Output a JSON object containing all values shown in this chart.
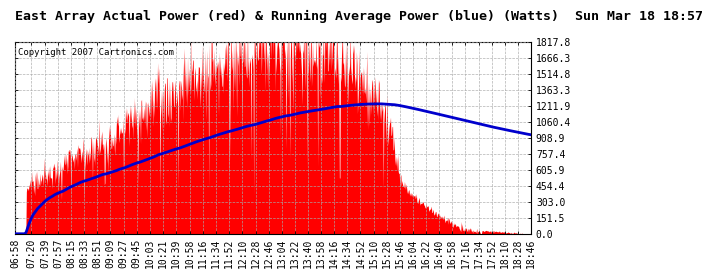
{
  "title": "East Array Actual Power (red) & Running Average Power (blue) (Watts)  Sun Mar 18 18:57",
  "copyright": "Copyright 2007 Cartronics.com",
  "ymax": 1817.8,
  "ytick_values": [
    0.0,
    151.5,
    303.0,
    454.4,
    605.9,
    757.4,
    908.9,
    1060.4,
    1211.9,
    1363.3,
    1514.8,
    1666.3,
    1817.8
  ],
  "xtick_labels": [
    "06:58",
    "07:20",
    "07:39",
    "07:57",
    "08:15",
    "08:33",
    "08:51",
    "09:09",
    "09:27",
    "09:45",
    "10:03",
    "10:21",
    "10:39",
    "10:58",
    "11:16",
    "11:34",
    "11:52",
    "12:10",
    "12:28",
    "12:46",
    "13:04",
    "13:22",
    "13:40",
    "13:58",
    "14:16",
    "14:34",
    "14:52",
    "15:10",
    "15:28",
    "15:46",
    "16:04",
    "16:22",
    "16:40",
    "16:58",
    "17:16",
    "17:34",
    "17:52",
    "18:10",
    "18:28",
    "18:46"
  ],
  "background_color": "#ffffff",
  "grid_color": "#aaaaaa",
  "actual_color": "#ff0000",
  "average_color": "#0000cc",
  "title_fontsize": 9.5,
  "tick_fontsize": 7.0,
  "copyright_fontsize": 6.5
}
